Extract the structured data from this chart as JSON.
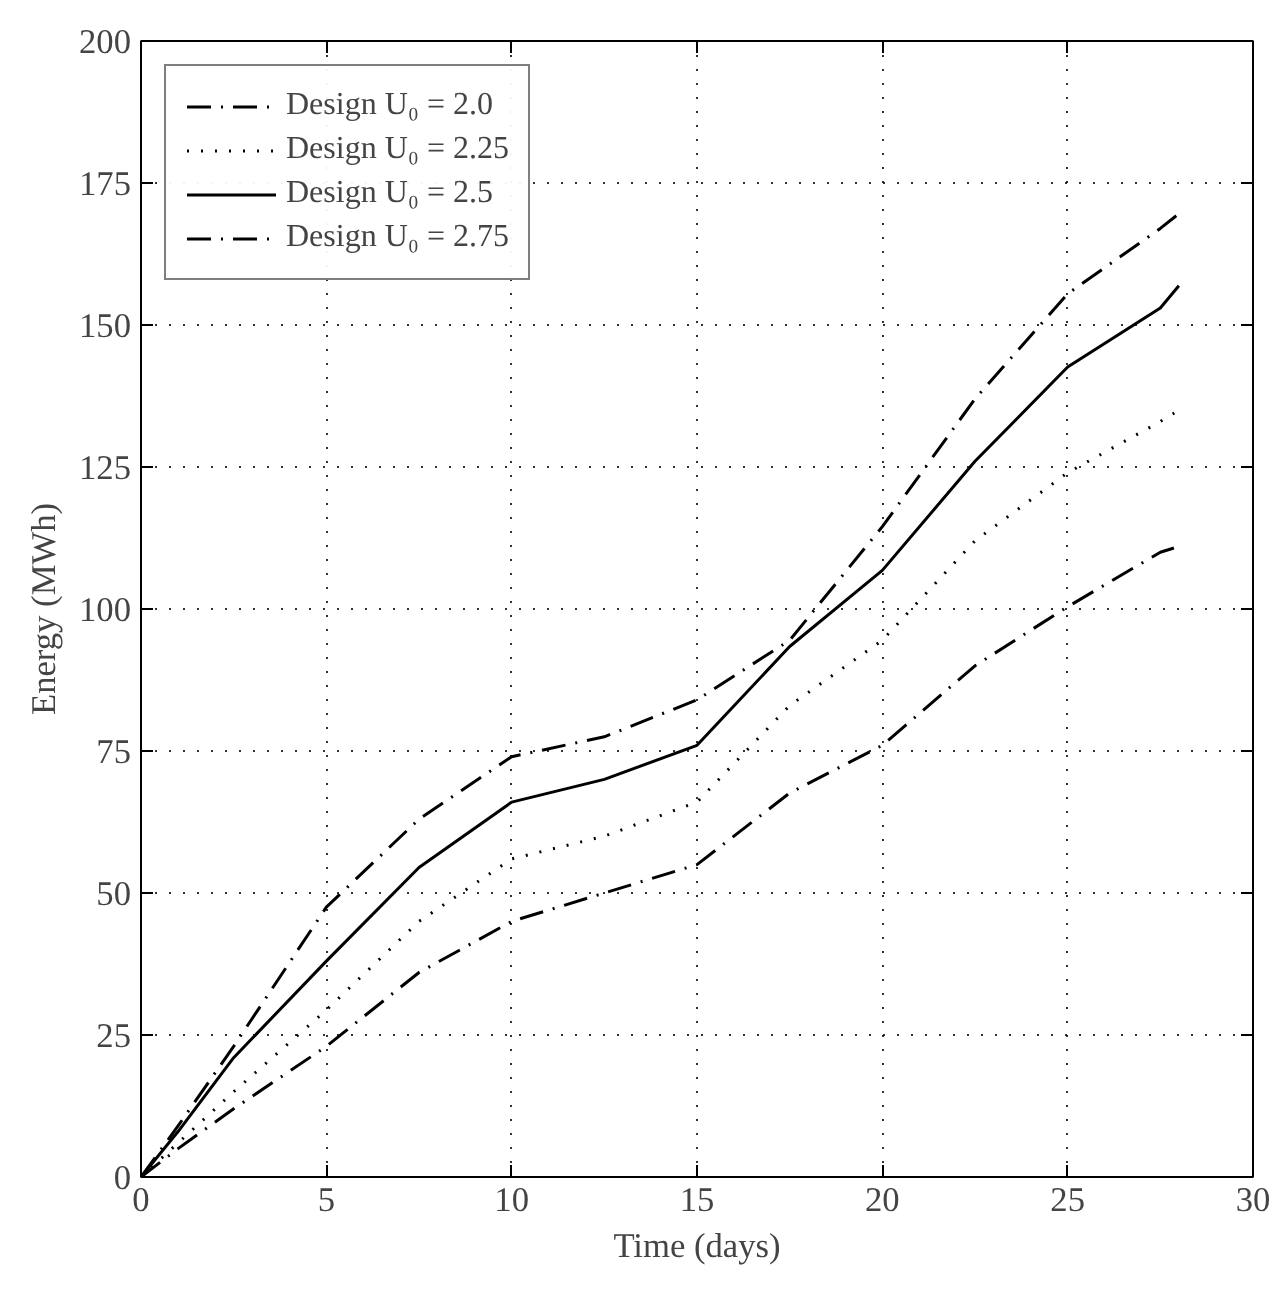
{
  "chart_data": {
    "type": "line",
    "xlabel": "Time (days)",
    "ylabel": "Energy (MWh)",
    "x": [
      0,
      1,
      2.5,
      5,
      7.5,
      10,
      12.5,
      15,
      17.5,
      20,
      22.5,
      25,
      27.5,
      28
    ],
    "series": [
      {
        "name": "Design U₀ = 2.0",
        "color": "#000000",
        "line_style": "dashed",
        "values": [
          0,
          5,
          12,
          23,
          36,
          45,
          50,
          55,
          67.6,
          76,
          90,
          100.4,
          110,
          111
        ]
      },
      {
        "name": "Design U₀ = 2.25",
        "color": "#000000",
        "line_style": "dotted",
        "values": [
          0,
          6,
          15,
          29.4,
          45,
          56,
          60,
          66,
          83,
          94.5,
          112,
          124,
          133,
          135
        ]
      },
      {
        "name": "Design U₀ = 2.5",
        "color": "#000000",
        "line_style": "solid",
        "values": [
          0,
          8,
          21,
          38,
          54.5,
          66,
          70,
          76,
          93.4,
          106.8,
          126,
          142.6,
          153,
          156.9
        ]
      },
      {
        "name": "Design U₀ = 2.75",
        "color": "#000000",
        "line_style": "dashed",
        "values": [
          0,
          9,
          23,
          47.5,
          63,
          74,
          77.5,
          84,
          94.5,
          114.5,
          137,
          155.5,
          167,
          169.6
        ]
      }
    ],
    "xlim": [
      0,
      30
    ],
    "ylim": [
      0,
      200
    ],
    "xticks": [
      0,
      5,
      10,
      15,
      20,
      25,
      30
    ],
    "yticks": [
      0,
      25,
      50,
      75,
      100,
      125,
      150,
      175,
      200
    ],
    "grid": true,
    "legend": "top left",
    "marker": "none"
  }
}
